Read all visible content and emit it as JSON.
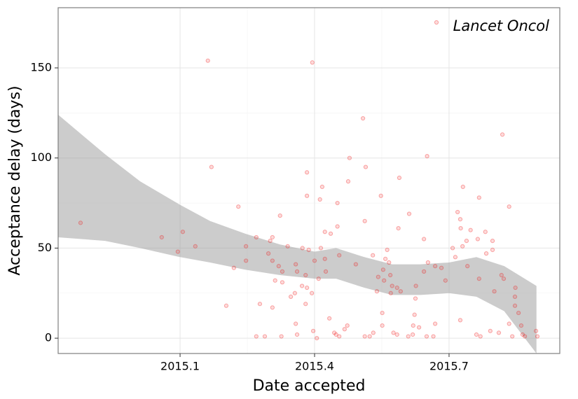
{
  "chart_data": {
    "type": "scatter",
    "x_label": "Date accepted",
    "y_label": "Acceptance delay (days)",
    "xlim": [
      2014.828,
      2015.947
    ],
    "ylim": [
      -8.5,
      183.4
    ],
    "xticks": [
      2015.1,
      2015.4,
      2015.7
    ],
    "yticks": [
      0,
      50,
      100,
      150
    ],
    "grid": true,
    "legend": "top-right",
    "alpha": 0.25,
    "series": [
      {
        "name": "Lancet Oncol",
        "color": "#f01010",
        "x": [
          2014.878,
          2015.059,
          2015.095,
          2015.106,
          2015.134,
          2015.162,
          2015.17,
          2015.203,
          2015.22,
          2015.23,
          2015.247,
          2015.247,
          2015.27,
          2015.27,
          2015.278,
          2015.289,
          2015.297,
          2015.301,
          2015.306,
          2015.306,
          2015.306,
          2015.312,
          2015.32,
          2015.323,
          2015.326,
          2015.328,
          2015.328,
          2015.34,
          2015.347,
          2015.356,
          2015.358,
          2015.358,
          2015.361,
          2015.361,
          2015.372,
          2015.373,
          2015.38,
          2015.38,
          2015.383,
          2015.383,
          2015.383,
          2015.387,
          2015.394,
          2015.395,
          2015.397,
          2015.4,
          2015.405,
          2015.409,
          2015.412,
          2015.414,
          2015.417,
          2015.423,
          2015.423,
          2015.425,
          2015.433,
          2015.436,
          2015.444,
          2015.448,
          2015.451,
          2015.451,
          2015.455,
          2015.455,
          2015.467,
          2015.473,
          2015.475,
          2015.478,
          2015.492,
          2015.508,
          2015.512,
          2015.512,
          2015.514,
          2015.523,
          2015.53,
          2015.531,
          2015.539,
          2015.542,
          2015.548,
          2015.551,
          2015.551,
          2015.553,
          2015.555,
          2015.558,
          2015.562,
          2015.566,
          2015.569,
          2015.57,
          2015.573,
          2015.576,
          2015.584,
          2015.584,
          2015.587,
          2015.589,
          2015.592,
          2015.609,
          2015.611,
          2015.619,
          2015.62,
          2015.623,
          2015.625,
          2015.626,
          2015.633,
          2015.644,
          2015.644,
          2015.65,
          2015.651,
          2015.653,
          2015.665,
          2015.669,
          2015.669,
          2015.683,
          2015.692,
          2015.708,
          2015.714,
          2015.719,
          2015.725,
          2015.725,
          2015.726,
          2015.73,
          2015.731,
          2015.739,
          2015.741,
          2015.748,
          2015.761,
          2015.764,
          2015.767,
          2015.767,
          2015.77,
          2015.781,
          2015.783,
          2015.792,
          2015.797,
          2015.797,
          2015.801,
          2015.811,
          2015.817,
          2015.819,
          2015.822,
          2015.834,
          2015.834,
          2015.841,
          2015.847,
          2015.847,
          2015.848,
          2015.855,
          2015.861,
          2015.864,
          2015.869,
          2015.894,
          2015.897
        ],
        "values": [
          64,
          56,
          48,
          59,
          51,
          154,
          95,
          18,
          39,
          73,
          51,
          43,
          56,
          1,
          19,
          1,
          47,
          54,
          56,
          43,
          17,
          32,
          40,
          68,
          1,
          37,
          31,
          51,
          23,
          25,
          41,
          8,
          2,
          37,
          29,
          50,
          19,
          35,
          92,
          79,
          28,
          49,
          25,
          153,
          4,
          43,
          0,
          33,
          77,
          50,
          84,
          59,
          44,
          37,
          11,
          58,
          3,
          2,
          75,
          62,
          1,
          46,
          5,
          7,
          87,
          100,
          41,
          122,
          1,
          65,
          95,
          1,
          46,
          3,
          26,
          34,
          79,
          14,
          7,
          38,
          32,
          44,
          49,
          42,
          35,
          25,
          29,
          3,
          2,
          28,
          61,
          89,
          26,
          1,
          69,
          2,
          7,
          13,
          22,
          29,
          6,
          37,
          55,
          1,
          101,
          42,
          1,
          40,
          8,
          39,
          32,
          50,
          45,
          70,
          66,
          10,
          61,
          51,
          84,
          54,
          40,
          60,
          2,
          55,
          33,
          78,
          1,
          59,
          47,
          4,
          54,
          49,
          26,
          3,
          35,
          113,
          33,
          73,
          8,
          1,
          18,
          23,
          28,
          14,
          7,
          2,
          1,
          4,
          1
        ]
      }
    ],
    "band": {
      "color": "#999999",
      "x": [
        2014.828,
        2014.933,
        2015.011,
        2015.1,
        2015.167,
        2015.245,
        2015.323,
        2015.4,
        2015.448,
        2015.511,
        2015.573,
        2015.636,
        2015.7,
        2015.761,
        2015.823,
        2015.895
      ],
      "upper": [
        124,
        102,
        87,
        74,
        65,
        58,
        52,
        48,
        50,
        45,
        41,
        41,
        42,
        45,
        40,
        29
      ],
      "lower": [
        56,
        54,
        50,
        45,
        42,
        38,
        35,
        33,
        33,
        28,
        24,
        24,
        25,
        23,
        15,
        -8.5
      ]
    }
  }
}
